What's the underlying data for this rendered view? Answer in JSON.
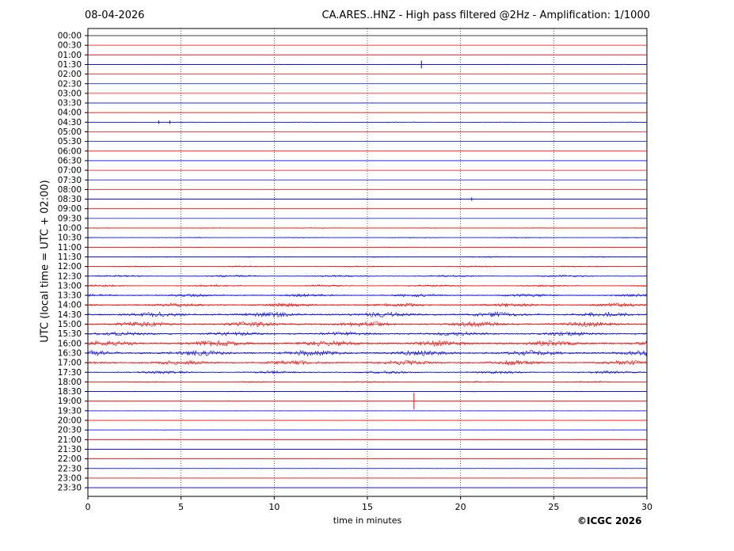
{
  "header": {
    "date": "08-04-2026",
    "title": "CA.ARES..HNZ - High pass filtered @2Hz - Amplification: 1/1000"
  },
  "footer": {
    "copyright": "©ICGC 2026"
  },
  "chart_data": {
    "type": "line",
    "title": "CA.ARES..HNZ - High pass filtered @2Hz - Amplification: 1/1000",
    "xlabel": "time in minutes",
    "ylabel": "UTC (local time = UTC + 02:00)",
    "xlim": [
      0,
      30
    ],
    "xticks": [
      0,
      5,
      10,
      15,
      20,
      25,
      30
    ],
    "x_gridlines": [
      5,
      10,
      15,
      20,
      25
    ],
    "grid": "vertical dotted",
    "row_labels": [
      "00:00",
      "00:30",
      "01:00",
      "01:30",
      "02:00",
      "02:30",
      "03:00",
      "03:30",
      "04:00",
      "04:30",
      "05:00",
      "05:30",
      "06:00",
      "06:30",
      "07:00",
      "07:30",
      "08:00",
      "08:30",
      "09:00",
      "09:30",
      "10:00",
      "10:30",
      "11:00",
      "11:30",
      "12:00",
      "12:30",
      "13:00",
      "13:30",
      "14:00",
      "14:30",
      "15:00",
      "15:30",
      "16:00",
      "16:30",
      "17:00",
      "17:30",
      "18:00",
      "18:30",
      "19:00",
      "19:30",
      "20:00",
      "20:30",
      "21:00",
      "21:30",
      "22:00",
      "22:30",
      "23:00",
      "23:30"
    ],
    "trace_colors": [
      "#0000ff",
      "#ff0000"
    ],
    "row_colors": [
      "#000000",
      "#ff0000",
      "#ff0000",
      "#0000ff",
      "#ff0000",
      "#0000ff",
      "#ff0000",
      "#0000ff",
      "#ff0000",
      "#0000ff",
      "#ff0000",
      "#0000ff",
      "#ff0000",
      "#0000ff",
      "#ff0000",
      "#0000ff",
      "#ff0000",
      "#0000ff",
      "#ff0000",
      "#0000ff",
      "#ff0000",
      "#0000ff",
      "#ff0000",
      "#0000ff",
      "#ff0000",
      "#0000ff",
      "#ff0000",
      "#0000ff",
      "#ff0000",
      "#0000ff",
      "#ff0000",
      "#0000ff",
      "#ff0000",
      "#0000ff",
      "#ff0000",
      "#0000ff",
      "#ff0000",
      "#0000ff",
      "#ff0000",
      "#0000ff",
      "#ff0000",
      "#0000ff",
      "#ff0000",
      "#0000ff",
      "#ff0000",
      "#0000ff",
      "#ff0000",
      "#0000ff"
    ],
    "row_activity": [
      0,
      0,
      0,
      0.05,
      0,
      0,
      0,
      0,
      0,
      0.05,
      0,
      0,
      0,
      0,
      0,
      0,
      0,
      0.02,
      0,
      0,
      0.08,
      0.08,
      0.04,
      0.1,
      0.12,
      0.2,
      0.2,
      0.3,
      0.4,
      0.55,
      0.55,
      0.45,
      0.6,
      0.6,
      0.5,
      0.3,
      0.12,
      0.06,
      0.02,
      0.02,
      0.02,
      0.02,
      0.02,
      0.02,
      0.02,
      0.02,
      0.02,
      0.02
    ],
    "events": [
      {
        "row": "01:30",
        "minute": 17.9,
        "amplitude": 0.35
      },
      {
        "row": "04:30",
        "minute": 3.8,
        "amplitude": 0.15
      },
      {
        "row": "04:30",
        "minute": 4.4,
        "amplitude": 0.15
      },
      {
        "row": "08:30",
        "minute": 20.6,
        "amplitude": 0.15
      },
      {
        "row": "19:00",
        "minute": 17.5,
        "amplitude": 0.75
      }
    ]
  }
}
